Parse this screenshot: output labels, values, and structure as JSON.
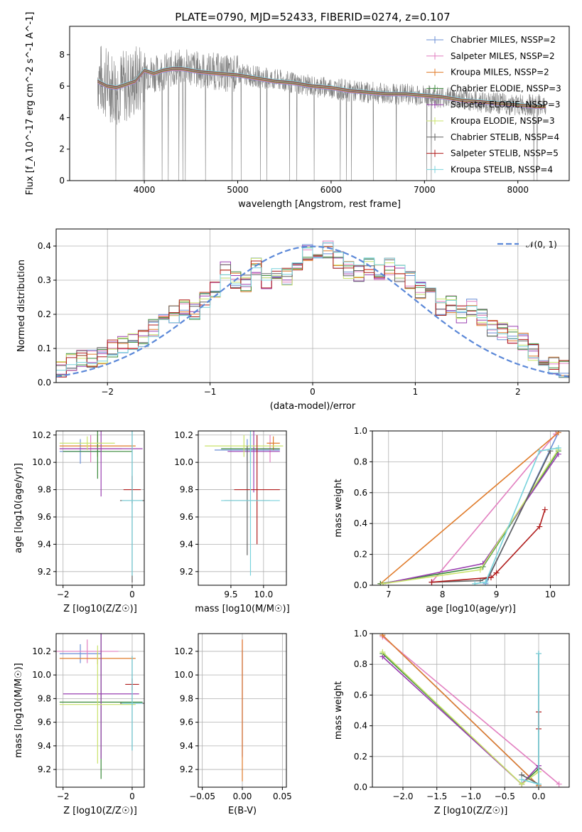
{
  "figure": {
    "title": "PLATE=0790, MJD=52433, FIBERID=0274, z=0.107"
  },
  "series_names": [
    "Chabrier MILES, N_SSP=2",
    "Salpeter MILES, N_SSP=2",
    "Kroupa MILES, N_SSP=2",
    "Chabrier ELODIE, N_SSP=3",
    "Salpeter ELODIE, N_SSP=3",
    "Kroupa ELODIE, N_SSP=3",
    "Chabrier STELIB, N_SSP=4",
    "Salpeter STELIB, N_SSP=5",
    "Kroupa STELIB, N_SSP=4"
  ],
  "colors": [
    "#6b8fd6",
    "#e27fc0",
    "#e07b2a",
    "#3a8a3a",
    "#9a3fb0",
    "#c9e36a",
    "#606060",
    "#b01c1c",
    "#78d2dc"
  ],
  "chart_data": [
    {
      "type": "line",
      "id": "spectrum",
      "title": "PLATE=0790, MJD=52433, FIBERID=0274, z=0.107",
      "xlabel": "wavelength [Angstrom, rest frame]",
      "ylabel": "Flux [f_λ 10^-17 erg cm^-2 s^-1 A^-1]",
      "xlim": [
        3200,
        8550
      ],
      "ylim": [
        0,
        9.8
      ],
      "xticks": [
        4000,
        5000,
        6000,
        7000,
        8000
      ],
      "yticks": [
        0,
        2,
        4,
        6,
        8
      ],
      "legend": "upper right",
      "data_series": {
        "name": "data",
        "color": "#808080",
        "x": [
          3500,
          3550,
          3600,
          3650,
          3700,
          3800,
          3900,
          4000,
          4100,
          4200,
          4300,
          4400,
          4500,
          4600,
          4700,
          4800,
          4900,
          5000,
          5200,
          5400,
          5600,
          5800,
          6000,
          6200,
          6400,
          6600,
          6800,
          7000,
          7200,
          7400,
          7600,
          7800,
          8000,
          8200,
          8300
        ],
        "y": [
          6.6,
          6.3,
          6.2,
          6.0,
          5.9,
          6.0,
          6.2,
          7.0,
          6.8,
          6.9,
          7.1,
          7.2,
          7.2,
          7.0,
          7.0,
          6.9,
          6.8,
          6.8,
          6.6,
          6.4,
          6.2,
          6.0,
          5.9,
          5.7,
          5.6,
          5.5,
          5.5,
          5.4,
          5.3,
          5.2,
          5.0,
          4.9,
          4.8,
          4.8,
          4.7
        ]
      },
      "model_x": [
        3500,
        3600,
        3700,
        3800,
        3900,
        4000,
        4100,
        4200,
        4300,
        4400,
        4500,
        4600,
        4800,
        5000,
        5200,
        5400,
        5600,
        5800,
        6000,
        6200,
        6400,
        6600,
        6800,
        7000,
        7200,
        7400,
        7600,
        7800,
        8000,
        8200,
        8300
      ],
      "model_y": [
        6.3,
        6.0,
        5.9,
        6.1,
        6.3,
        7.0,
        6.8,
        7.0,
        7.1,
        7.1,
        7.0,
        6.9,
        6.8,
        6.7,
        6.5,
        6.3,
        6.2,
        6.0,
        5.9,
        5.7,
        5.6,
        5.5,
        5.5,
        5.4,
        5.3,
        5.1,
        5.0,
        4.9,
        4.8,
        4.7,
        4.7
      ]
    },
    {
      "type": "line",
      "id": "residuals",
      "xlabel": "(data-model)/error",
      "ylabel": "Normed distribution",
      "xlim": [
        -2.5,
        2.5
      ],
      "ylim": [
        0,
        0.45
      ],
      "xticks": [
        -2,
        -1,
        0,
        1,
        2
      ],
      "yticks": [
        0.0,
        0.1,
        0.2,
        0.3,
        0.4
      ],
      "reference": {
        "name": "𝒩(0, 1)",
        "color": "#5b88d8",
        "style": "dashed"
      },
      "bin_centers": [
        -2.45,
        -2.35,
        -2.25,
        -2.15,
        -2.05,
        -1.95,
        -1.85,
        -1.75,
        -1.65,
        -1.55,
        -1.45,
        -1.35,
        -1.25,
        -1.15,
        -1.05,
        -0.95,
        -0.85,
        -0.75,
        -0.65,
        -0.55,
        -0.45,
        -0.35,
        -0.25,
        -0.15,
        -0.05,
        0.05,
        0.15,
        0.25,
        0.35,
        0.45,
        0.55,
        0.65,
        0.75,
        0.85,
        0.95,
        1.05,
        1.15,
        1.25,
        1.35,
        1.45,
        1.55,
        1.65,
        1.75,
        1.85,
        1.95,
        2.05,
        2.15,
        2.25,
        2.35,
        2.45
      ],
      "histogram": [
        0.04,
        0.06,
        0.07,
        0.07,
        0.08,
        0.1,
        0.11,
        0.12,
        0.13,
        0.16,
        0.21,
        0.2,
        0.22,
        0.21,
        0.24,
        0.27,
        0.33,
        0.3,
        0.29,
        0.34,
        0.3,
        0.33,
        0.31,
        0.34,
        0.38,
        0.35,
        0.39,
        0.36,
        0.33,
        0.32,
        0.34,
        0.32,
        0.34,
        0.32,
        0.3,
        0.27,
        0.26,
        0.22,
        0.23,
        0.2,
        0.22,
        0.19,
        0.16,
        0.15,
        0.14,
        0.12,
        0.09,
        0.07,
        0.05,
        0.04
      ]
    },
    {
      "type": "scatter",
      "id": "age-vs-z",
      "xlabel": "Z [log10(Z/Z☉)]",
      "ylabel": "age  [log10(age/yr)]",
      "xlim": [
        -2.2,
        0.35
      ],
      "ylim": [
        9.1,
        10.23
      ],
      "xticks": [
        -2,
        0
      ],
      "yticks": [
        9.2,
        9.4,
        9.6,
        9.8,
        10.0,
        10.2
      ],
      "points": [
        {
          "x": -1.5,
          "y": 10.08,
          "xerr": 0.6,
          "yerr": 0.09
        },
        {
          "x": -1.2,
          "y": 10.1,
          "xerr": 0.9,
          "yerr": 0.1
        },
        {
          "x": -1.0,
          "y": 10.12,
          "xerr": 1.1,
          "yerr": 0.08
        },
        {
          "x": -1.0,
          "y": 10.08,
          "xerr": 1.0,
          "yerr": 0.2
        },
        {
          "x": -0.9,
          "y": 10.1,
          "xerr": 1.2,
          "yerr": 0.35
        },
        {
          "x": -1.3,
          "y": 10.14,
          "xerr": 0.8,
          "yerr": 0.05
        },
        {
          "x": 0.0,
          "y": 9.72,
          "xerr": 0.35,
          "yerr": 0.6
        },
        {
          "x": 0.0,
          "y": 9.8,
          "xerr": 0.25,
          "yerr": 0.1
        },
        {
          "x": 0.0,
          "y": 9.72,
          "xerr": 0.3,
          "yerr": 0.55
        }
      ]
    },
    {
      "type": "scatter",
      "id": "age-vs-mass",
      "xlabel": "mass [log10(M/M☉)]",
      "ylabel": "",
      "xlim": [
        9.0,
        10.35
      ],
      "ylim": [
        9.1,
        10.23
      ],
      "xticks": [
        9.5,
        10.0
      ],
      "yticks": [
        9.2,
        9.4,
        9.6,
        9.8,
        10.0,
        10.2
      ],
      "points": [
        {
          "x": 9.75,
          "y": 10.09,
          "xerr": 0.5,
          "yerr": 0.08
        },
        {
          "x": 10.1,
          "y": 10.1,
          "xerr": 0.15,
          "yerr": 0.1
        },
        {
          "x": 10.15,
          "y": 10.14,
          "xerr": 0.1,
          "yerr": 0.05
        },
        {
          "x": 9.8,
          "y": 10.1,
          "xerr": 0.45,
          "yerr": 0.1
        },
        {
          "x": 9.85,
          "y": 10.08,
          "xerr": 0.4,
          "yerr": 0.3
        },
        {
          "x": 9.7,
          "y": 10.12,
          "xerr": 0.6,
          "yerr": 0.08
        },
        {
          "x": 9.75,
          "y": 9.72,
          "xerr": 0.35,
          "yerr": 0.4
        },
        {
          "x": 9.9,
          "y": 9.8,
          "xerr": 0.35,
          "yerr": 0.4
        },
        {
          "x": 9.8,
          "y": 9.72,
          "xerr": 0.45,
          "yerr": 0.55
        }
      ]
    },
    {
      "type": "line",
      "id": "weight-vs-age",
      "xlabel": "age  [log10(age/yr)]",
      "ylabel": "mass weight",
      "xlim": [
        6.7,
        10.35
      ],
      "ylim": [
        0,
        1.0
      ],
      "xticks": [
        7,
        8,
        9,
        10
      ],
      "yticks": [
        0.0,
        0.2,
        0.4,
        0.6,
        0.8,
        1.0
      ],
      "series": [
        {
          "x": [
            8.8,
            10.15
          ],
          "y": [
            0.01,
            0.99
          ]
        },
        {
          "x": [
            7.8,
            10.1
          ],
          "y": [
            0.02,
            0.98
          ]
        },
        {
          "x": [
            6.85,
            10.15
          ],
          "y": [
            0.01,
            0.99
          ]
        },
        {
          "x": [
            6.85,
            8.75,
            10.15
          ],
          "y": [
            0.01,
            0.12,
            0.87
          ]
        },
        {
          "x": [
            6.9,
            8.75,
            10.15
          ],
          "y": [
            0.01,
            0.14,
            0.85
          ]
        },
        {
          "x": [
            6.9,
            8.7,
            10.15
          ],
          "y": [
            0.01,
            0.1,
            0.88
          ]
        },
        {
          "x": [
            7.8,
            8.7,
            8.85,
            10.0
          ],
          "y": [
            0.02,
            0.03,
            0.05,
            0.87
          ]
        },
        {
          "x": [
            7.8,
            8.9,
            9.0,
            9.8,
            9.9
          ],
          "y": [
            0.02,
            0.05,
            0.08,
            0.38,
            0.49
          ]
        },
        {
          "x": [
            8.6,
            8.8,
            9.8,
            10.15
          ],
          "y": [
            0.01,
            0.02,
            0.87,
            0.89
          ]
        }
      ]
    },
    {
      "type": "scatter",
      "id": "mass-vs-z",
      "xlabel": "Z [log10(Z/Z☉)]",
      "ylabel": "mass [log10(M/M☉)]",
      "xlim": [
        -2.2,
        0.35
      ],
      "ylim": [
        9.05,
        10.35
      ],
      "xticks": [
        -2,
        0
      ],
      "yticks": [
        9.2,
        9.4,
        9.6,
        9.8,
        10.0,
        10.2
      ],
      "points": [
        {
          "x": -1.5,
          "y": 10.18,
          "xerr": 0.6,
          "yerr": 0.08
        },
        {
          "x": -1.3,
          "y": 10.2,
          "xerr": 0.9,
          "yerr": 0.1
        },
        {
          "x": -1.0,
          "y": 10.14,
          "xerr": 1.1,
          "yerr": 0.05
        },
        {
          "x": -0.9,
          "y": 9.77,
          "xerr": 1.2,
          "yerr": 0.65
        },
        {
          "x": -0.9,
          "y": 9.84,
          "xerr": 1.1,
          "yerr": 0.55
        },
        {
          "x": -1.0,
          "y": 9.75,
          "xerr": 1.1,
          "yerr": 0.5
        },
        {
          "x": 0.0,
          "y": 9.76,
          "xerr": 0.35,
          "yerr": 0.4
        },
        {
          "x": 0.0,
          "y": 9.92,
          "xerr": 0.2,
          "yerr": 0.05
        },
        {
          "x": 0.0,
          "y": 9.76,
          "xerr": 0.3,
          "yerr": 0.4
        }
      ]
    },
    {
      "type": "scatter",
      "id": "mass-vs-ebv",
      "xlabel": "E(B-V)",
      "ylabel": "",
      "xlim": [
        -0.055,
        0.055
      ],
      "ylim": [
        9.05,
        10.35
      ],
      "xticks": [
        -0.05,
        0.0,
        0.05
      ],
      "yticks": [
        9.2,
        9.4,
        9.6,
        9.8,
        10.0,
        10.2
      ],
      "points": [
        {
          "x": 0.0,
          "y": 9.76,
          "yerr": 0.45
        },
        {
          "x": 0.0,
          "y": 9.8,
          "yerr": 0.5
        },
        {
          "x": 0.0,
          "y": 9.7,
          "yerr": 0.6
        }
      ]
    },
    {
      "type": "line",
      "id": "weight-vs-z",
      "xlabel": "Z [log10(Z/Z☉)]",
      "ylabel": "mass weight",
      "xlim": [
        -2.45,
        0.45
      ],
      "ylim": [
        0,
        1.0
      ],
      "xticks": [
        -2.0,
        -1.5,
        -1.0,
        -0.5,
        0.0
      ],
      "yticks": [
        0.0,
        0.2,
        0.4,
        0.6,
        0.8,
        1.0
      ],
      "series": [
        {
          "x": [
            -2.3,
            0.0
          ],
          "y": [
            0.99,
            0.01
          ]
        },
        {
          "x": [
            -2.3,
            0.3
          ],
          "y": [
            0.98,
            0.02
          ]
        },
        {
          "x": [
            -2.3,
            0.0
          ],
          "y": [
            0.99,
            0.01
          ]
        },
        {
          "x": [
            -2.3,
            -0.25,
            0.0
          ],
          "y": [
            0.87,
            0.02,
            0.12
          ]
        },
        {
          "x": [
            -2.3,
            -0.25,
            0.0
          ],
          "y": [
            0.85,
            0.02,
            0.14
          ]
        },
        {
          "x": [
            -2.3,
            -0.25,
            0.0
          ],
          "y": [
            0.88,
            0.02,
            0.1
          ]
        },
        {
          "x": [
            -0.25,
            0.0,
            0.0
          ],
          "y": [
            0.08,
            0.02,
            0.87
          ]
        },
        {
          "x": [
            0.0,
            0.0
          ],
          "y": [
            0.38,
            0.49
          ]
        },
        {
          "x": [
            -0.25,
            0.0,
            0.0
          ],
          "y": [
            0.05,
            0.02,
            0.87
          ]
        }
      ]
    }
  ]
}
